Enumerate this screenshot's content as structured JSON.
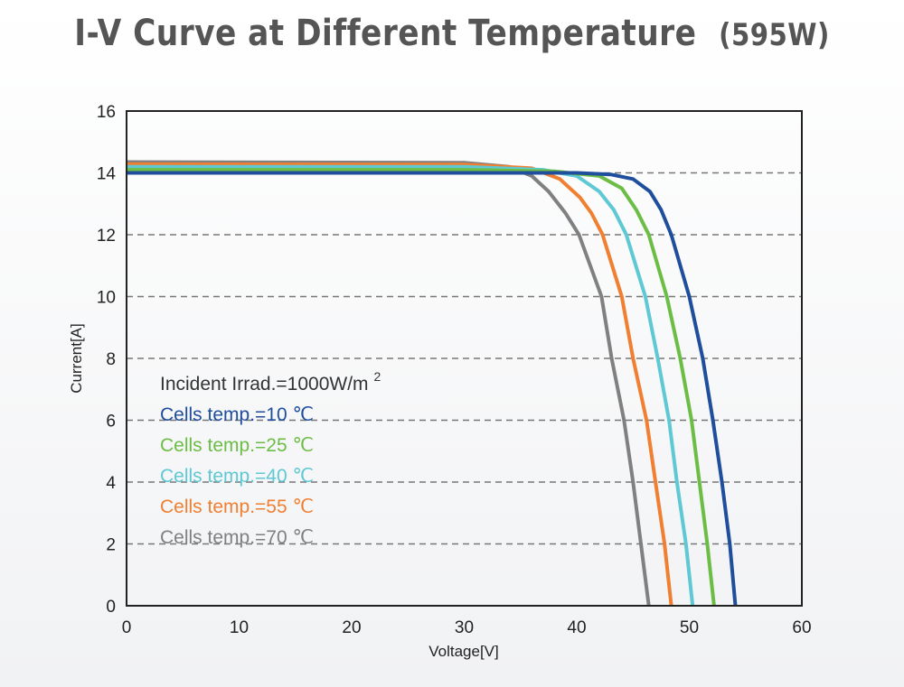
{
  "chart_data": {
    "type": "line",
    "title": "I-V Curve at Different Temperature",
    "title_suffix": "(595W)",
    "xlabel": "Voltage[V]",
    "ylabel": "Current[A]",
    "xlim": [
      0,
      60
    ],
    "ylim": [
      0,
      16
    ],
    "xticks": [
      0,
      10,
      20,
      30,
      40,
      50,
      60
    ],
    "yticks": [
      0,
      2,
      4,
      6,
      8,
      10,
      12,
      14,
      16
    ],
    "grid": "horizontal-dashed",
    "legend_header": "Incident Irrad.=1000W/m",
    "legend_header_sup": "2",
    "legend_placement": "lower-left",
    "series": [
      {
        "name": "Cells temp.=10 ℃",
        "color": "#1f4e9c",
        "points": [
          [
            0,
            14.0
          ],
          [
            30,
            14.0
          ],
          [
            40,
            14.0
          ],
          [
            43,
            13.95
          ],
          [
            45,
            13.8
          ],
          [
            46.5,
            13.4
          ],
          [
            47.5,
            12.8
          ],
          [
            48.4,
            12
          ],
          [
            50,
            10
          ],
          [
            51.2,
            8
          ],
          [
            52.1,
            6
          ],
          [
            52.9,
            4
          ],
          [
            53.6,
            2
          ],
          [
            54.1,
            0
          ]
        ]
      },
      {
        "name": "Cells temp.=25 ℃",
        "color": "#6cbd45",
        "points": [
          [
            0,
            14.1
          ],
          [
            30,
            14.1
          ],
          [
            38,
            14.05
          ],
          [
            42,
            13.9
          ],
          [
            44,
            13.5
          ],
          [
            45.3,
            12.8
          ],
          [
            46.4,
            12
          ],
          [
            48.0,
            10
          ],
          [
            49.2,
            8
          ],
          [
            50.2,
            6
          ],
          [
            50.9,
            4
          ],
          [
            51.6,
            2
          ],
          [
            52.2,
            0
          ]
        ]
      },
      {
        "name": "Cells temp.=40 ℃",
        "color": "#5ec8d4",
        "points": [
          [
            0,
            14.2
          ],
          [
            30,
            14.2
          ],
          [
            37,
            14.1
          ],
          [
            40,
            13.9
          ],
          [
            42,
            13.4
          ],
          [
            43.3,
            12.8
          ],
          [
            44.4,
            12
          ],
          [
            46.1,
            10
          ],
          [
            47.2,
            8
          ],
          [
            48.2,
            6
          ],
          [
            48.9,
            4
          ],
          [
            49.7,
            2
          ],
          [
            50.3,
            0
          ]
        ]
      },
      {
        "name": "Cells temp.=55 ℃",
        "color": "#f07f32",
        "points": [
          [
            0,
            14.28
          ],
          [
            30,
            14.27
          ],
          [
            36,
            14.15
          ],
          [
            38.5,
            13.8
          ],
          [
            40.3,
            13.2
          ],
          [
            41.3,
            12.7
          ],
          [
            42.3,
            12
          ],
          [
            44.0,
            10
          ],
          [
            45.0,
            8
          ],
          [
            46.2,
            6
          ],
          [
            47.0,
            4
          ],
          [
            47.8,
            2
          ],
          [
            48.4,
            0
          ]
        ]
      },
      {
        "name": "Cells temp.=70 ℃",
        "color": "#808080",
        "points": [
          [
            0,
            14.35
          ],
          [
            30,
            14.33
          ],
          [
            34,
            14.2
          ],
          [
            36,
            13.9
          ],
          [
            37.5,
            13.4
          ],
          [
            39,
            12.7
          ],
          [
            40.2,
            12
          ],
          [
            42.2,
            10
          ],
          [
            43.1,
            8
          ],
          [
            44.2,
            6
          ],
          [
            45.0,
            4
          ],
          [
            45.7,
            2
          ],
          [
            46.4,
            0
          ]
        ]
      }
    ]
  }
}
